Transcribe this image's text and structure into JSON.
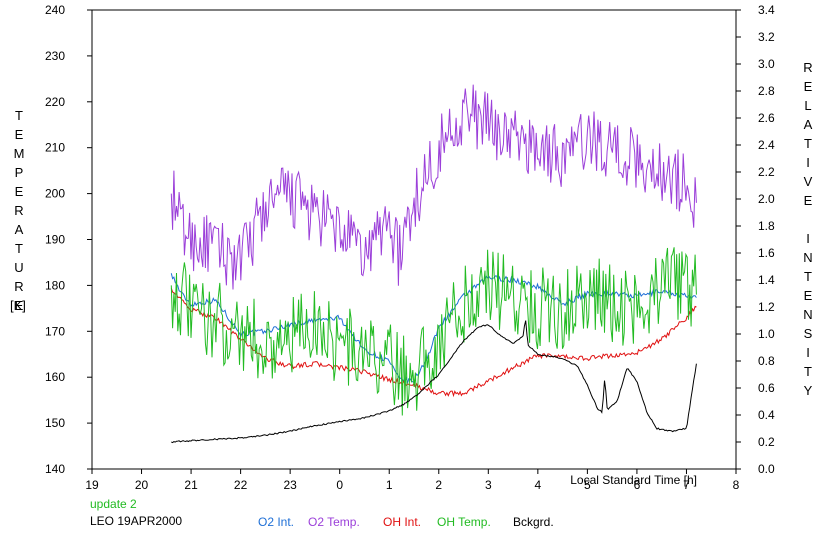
{
  "chart_data": {
    "type": "line",
    "xlabel": "Local Standard Time [h]",
    "x_ticks": [
      "19",
      "20",
      "21",
      "22",
      "23",
      "0",
      "1",
      "2",
      "3",
      "4",
      "5",
      "6",
      "7",
      "8"
    ],
    "xlim": [
      19,
      32
    ],
    "left_axis": {
      "label_letters": [
        "T",
        "E",
        "M",
        "P",
        "E",
        "R",
        "A",
        "T",
        "U",
        "R",
        "E"
      ],
      "unit": "[K]",
      "ticks": [
        140,
        150,
        160,
        170,
        180,
        190,
        200,
        210,
        220,
        230,
        240
      ],
      "ylim": [
        140,
        240
      ]
    },
    "right_axis": {
      "label_letters": [
        "R",
        "E",
        "L",
        "A",
        "T",
        "I",
        "V",
        "E",
        "",
        "I",
        "N",
        "T",
        "E",
        "N",
        "S",
        "I",
        "T",
        "Y"
      ],
      "ticks": [
        "0.0",
        "0.2",
        "0.4",
        "0.6",
        "0.8",
        "1.0",
        "1.2",
        "1.4",
        "1.6",
        "1.8",
        "2.0",
        "2.2",
        "2.4",
        "2.6",
        "2.8",
        "3.0",
        "3.2",
        "3.4"
      ],
      "ylim": [
        0,
        3.4
      ]
    },
    "series": [
      {
        "name": "O2 Int.",
        "axis": "right",
        "color": "#1e6fd6",
        "noise": 0.02,
        "x": [
          20.6,
          20.8,
          21.0,
          21.5,
          22.0,
          22.5,
          23.0,
          23.5,
          24.0,
          24.5,
          25.0,
          25.2,
          25.5,
          25.8,
          26.0,
          26.5,
          27.0,
          27.5,
          28.0,
          28.5,
          29.0,
          29.5,
          30.0,
          30.5,
          31.0,
          31.2
        ],
        "y": [
          1.45,
          1.3,
          1.22,
          1.25,
          1.0,
          1.02,
          1.07,
          1.1,
          1.12,
          0.88,
          0.8,
          0.66,
          0.65,
          0.85,
          1.05,
          1.28,
          1.42,
          1.4,
          1.35,
          1.22,
          1.3,
          1.3,
          1.28,
          1.32,
          1.28,
          1.27
        ]
      },
      {
        "name": "O2 Temp.",
        "axis": "left",
        "color": "#9b3fd9",
        "noise": 7,
        "x": [
          20.6,
          20.8,
          21.0,
          21.5,
          22.0,
          22.5,
          23.0,
          23.5,
          24.0,
          24.5,
          25.0,
          25.2,
          25.5,
          26.0,
          26.5,
          27.0,
          27.5,
          28.0,
          28.5,
          29.0,
          29.5,
          30.0,
          30.5,
          31.0,
          31.2
        ],
        "y": [
          200,
          193,
          190,
          188,
          185,
          197,
          200,
          195,
          192,
          186,
          195,
          186,
          198,
          210,
          218,
          215,
          212,
          210,
          208,
          212,
          210,
          207,
          205,
          202,
          198
        ]
      },
      {
        "name": "OH Int.",
        "axis": "right",
        "color": "#e01010",
        "noise": 0.018,
        "x": [
          20.6,
          20.8,
          21.0,
          21.5,
          22.0,
          22.5,
          23.0,
          23.5,
          24.0,
          24.5,
          25.0,
          25.5,
          26.0,
          26.5,
          27.0,
          27.5,
          28.0,
          28.5,
          29.0,
          29.5,
          30.0,
          30.5,
          31.0,
          31.2
        ],
        "y": [
          1.34,
          1.25,
          1.18,
          1.12,
          0.96,
          0.82,
          0.76,
          0.78,
          0.75,
          0.72,
          0.66,
          0.62,
          0.56,
          0.56,
          0.65,
          0.75,
          0.84,
          0.83,
          0.82,
          0.84,
          0.86,
          0.96,
          1.12,
          1.2
        ]
      },
      {
        "name": "OH Temp.",
        "axis": "left",
        "color": "#22bb22",
        "noise": 9,
        "x": [
          20.6,
          20.8,
          21.0,
          21.5,
          22.0,
          22.5,
          23.0,
          23.5,
          24.0,
          24.5,
          25.0,
          25.3,
          25.6,
          26.0,
          26.5,
          27.0,
          27.5,
          28.0,
          28.5,
          29.0,
          29.5,
          30.0,
          30.5,
          31.0,
          31.2
        ],
        "y": [
          180,
          177,
          174,
          172,
          170,
          167,
          168,
          172,
          167,
          165,
          163,
          160,
          162,
          168,
          176,
          180,
          178,
          175,
          175,
          178,
          176,
          175,
          180,
          180,
          178
        ]
      },
      {
        "name": "Bckgrd.",
        "axis": "right",
        "color": "#000000",
        "noise": 0.005,
        "x": [
          20.6,
          21.0,
          21.5,
          22.0,
          22.5,
          23.0,
          23.5,
          24.0,
          24.5,
          25.0,
          25.3,
          25.6,
          26.0,
          26.5,
          26.8,
          27.0,
          27.2,
          27.5,
          27.7,
          27.75,
          27.8,
          28.0,
          28.5,
          28.8,
          29.0,
          29.2,
          29.3,
          29.35,
          29.4,
          29.6,
          29.8,
          30.0,
          30.2,
          30.4,
          30.7,
          31.0,
          31.2
        ],
        "y": [
          0.2,
          0.21,
          0.22,
          0.23,
          0.25,
          0.28,
          0.32,
          0.35,
          0.38,
          0.43,
          0.48,
          0.56,
          0.7,
          0.95,
          1.05,
          1.07,
          1.0,
          0.93,
          0.98,
          1.12,
          0.92,
          0.85,
          0.82,
          0.76,
          0.62,
          0.45,
          0.42,
          0.68,
          0.44,
          0.5,
          0.75,
          0.65,
          0.42,
          0.3,
          0.28,
          0.3,
          0.78
        ]
      }
    ]
  },
  "footer": {
    "update": "update 2",
    "station": "LEO 19APR2000",
    "update_color": "#22bb22"
  }
}
